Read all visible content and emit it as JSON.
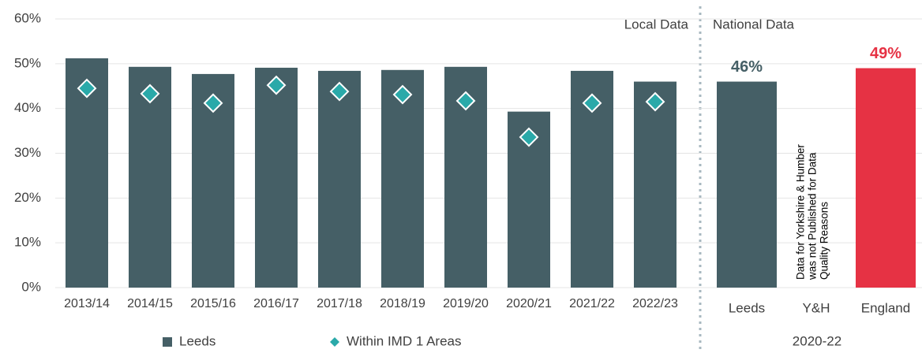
{
  "chart_data": [
    {
      "type": "bar",
      "title": "Local Data",
      "categories": [
        "2013/14",
        "2014/15",
        "2015/16",
        "2016/17",
        "2017/18",
        "2018/19",
        "2019/20",
        "2020/21",
        "2021/22",
        "2022/23"
      ],
      "series": [
        {
          "name": "Leeds",
          "color": "#455f66",
          "values": [
            51.2,
            49.3,
            47.7,
            49.1,
            48.4,
            48.6,
            49.3,
            39.3,
            48.4,
            46.0
          ]
        },
        {
          "name": "Within IMD 1 Areas",
          "type": "scatter",
          "marker": "diamond",
          "color": "#2aa9a9",
          "values": [
            44.5,
            43.3,
            41.2,
            45.2,
            43.8,
            43.1,
            41.7,
            33.6,
            41.2,
            41.5
          ]
        }
      ],
      "ylim": [
        0,
        60
      ],
      "yticks": [
        {
          "value": 0,
          "label": "0%"
        },
        {
          "value": 10,
          "label": "10%"
        },
        {
          "value": 20,
          "label": "20%"
        },
        {
          "value": 30,
          "label": "30%"
        },
        {
          "value": 40,
          "label": "40%"
        },
        {
          "value": 50,
          "label": "50%"
        },
        {
          "value": 60,
          "label": "60%"
        }
      ],
      "grid": true,
      "legend": "bottom"
    },
    {
      "type": "bar",
      "title": "National Data",
      "x_label": "2020-22",
      "categories": [
        "Leeds",
        "Y&H",
        "England"
      ],
      "values": [
        46,
        null,
        49
      ],
      "value_labels": [
        "46%",
        null,
        "49%"
      ],
      "colors": [
        "#455f66",
        null,
        "#e63244"
      ],
      "ylim": [
        0,
        60
      ],
      "annotation": [
        "Data for Yorkshire & Humber",
        "was not Published for Data",
        "Quality Reasons"
      ]
    }
  ]
}
